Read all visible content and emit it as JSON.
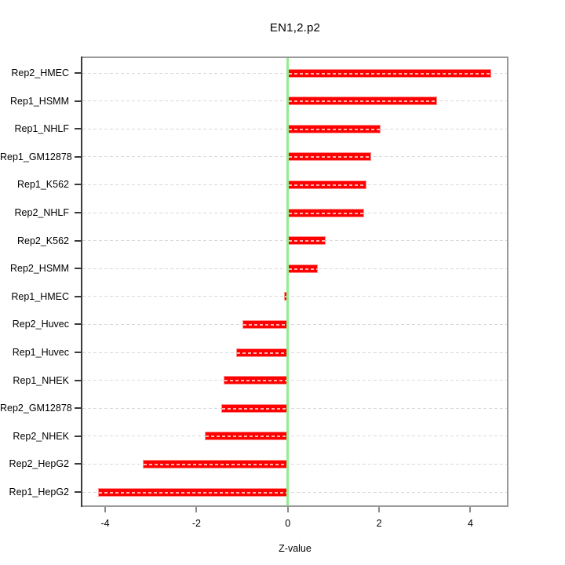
{
  "title": "EN1,2.p2",
  "chart_data": {
    "type": "bar",
    "orientation": "horizontal",
    "title": "EN1,2.p2",
    "xlabel": "Z-value",
    "ylabel": "",
    "categories": [
      "Rep2_HMEC",
      "Rep1_HSMM",
      "Rep1_NHLF",
      "Rep1_GM12878",
      "Rep1_K562",
      "Rep2_NHLF",
      "Rep2_K562",
      "Rep2_HSMM",
      "Rep1_HMEC",
      "Rep2_Huvec",
      "Rep1_Huvec",
      "Rep1_NHEK",
      "Rep2_GM12878",
      "Rep2_NHEK",
      "Rep2_HepG2",
      "Rep1_HepG2"
    ],
    "values": [
      4.46,
      3.27,
      2.04,
      1.82,
      1.72,
      1.68,
      0.83,
      0.66,
      -0.09,
      -0.99,
      -1.13,
      -1.41,
      -1.45,
      -1.81,
      -3.17,
      -4.15
    ],
    "xticks": [
      -4,
      -2,
      0,
      2,
      4
    ],
    "xlim": [
      -4.5,
      4.8
    ],
    "grid": true,
    "zero_line": 0,
    "legend": null,
    "colors": {
      "bar": "#ff0000",
      "bar_border": "#ff9090",
      "zero_line": "#90ee90",
      "gridline": "#d9d9d9",
      "box_border": "#9a9a9a",
      "axis": "#3a3a3a",
      "text": "#000000"
    }
  }
}
